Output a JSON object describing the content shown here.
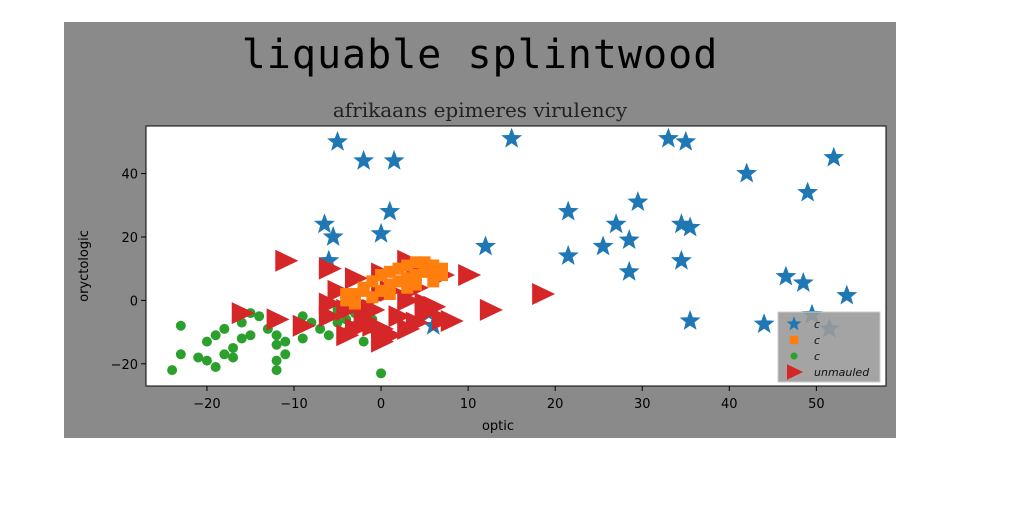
{
  "chart_data": {
    "type": "scatter",
    "title": "liquable splintwood",
    "subtitle": "afrikaans epimeres virulency",
    "xlabel": "optic",
    "ylabel": "oryctologic",
    "xlim": [
      -27,
      58
    ],
    "ylim": [
      -27,
      55
    ],
    "xticks": [
      -20,
      -10,
      0,
      10,
      20,
      30,
      40,
      50
    ],
    "yticks": [
      -20,
      0,
      20,
      40
    ],
    "grid": false,
    "legend_position": "bottom-right",
    "series": [
      {
        "name": "c",
        "marker": "star",
        "color": "#1f77b4",
        "points": [
          [
            -5,
            50
          ],
          [
            -2,
            44
          ],
          [
            1.5,
            44
          ],
          [
            15,
            51
          ],
          [
            33,
            51
          ],
          [
            35,
            50
          ],
          [
            52,
            45
          ],
          [
            42,
            40
          ],
          [
            49,
            34
          ],
          [
            1,
            28
          ],
          [
            29.5,
            31
          ],
          [
            21.5,
            28
          ],
          [
            27,
            24
          ],
          [
            -6.5,
            24
          ],
          [
            -5.5,
            20
          ],
          [
            0,
            21
          ],
          [
            12,
            17
          ],
          [
            28.5,
            19
          ],
          [
            34.5,
            24
          ],
          [
            35.5,
            23
          ],
          [
            21.5,
            14
          ],
          [
            25.5,
            17
          ],
          [
            34.5,
            12.5
          ],
          [
            28.5,
            9
          ],
          [
            -6,
            12.5
          ],
          [
            46.5,
            7.5
          ],
          [
            48.5,
            5.5
          ],
          [
            53.5,
            1.5
          ],
          [
            5.5,
            -4
          ],
          [
            6,
            -8
          ],
          [
            35.5,
            -6.5
          ],
          [
            44,
            -7.5
          ],
          [
            49.5,
            -4.5
          ],
          [
            51.5,
            -9
          ]
        ]
      },
      {
        "name": "c",
        "marker": "square",
        "color": "#ff7f0e",
        "points": [
          [
            -4,
            0
          ],
          [
            -3,
            2
          ],
          [
            -2,
            4
          ],
          [
            -1,
            6
          ],
          [
            0,
            8
          ],
          [
            1,
            9
          ],
          [
            2,
            10
          ],
          [
            3,
            11
          ],
          [
            4,
            12
          ],
          [
            5,
            12
          ],
          [
            6,
            11
          ],
          [
            7,
            10
          ],
          [
            -3,
            -1
          ],
          [
            -1,
            1
          ],
          [
            0,
            3
          ],
          [
            1,
            5
          ],
          [
            2,
            6
          ],
          [
            3,
            7
          ],
          [
            4,
            8
          ],
          [
            5,
            9
          ],
          [
            6,
            9
          ],
          [
            7,
            8
          ],
          [
            -2,
            3
          ],
          [
            3,
            4
          ],
          [
            -4,
            2
          ],
          [
            1,
            2
          ],
          [
            4,
            5
          ],
          [
            6,
            6
          ]
        ]
      },
      {
        "name": "c",
        "marker": "circle",
        "color": "#2ca02c",
        "points": [
          [
            -23,
            -8
          ],
          [
            -23,
            -17
          ],
          [
            -24,
            -22
          ],
          [
            -21,
            -18
          ],
          [
            -20,
            -19
          ],
          [
            -19,
            -21
          ],
          [
            -18,
            -17
          ],
          [
            -17,
            -18
          ],
          [
            -17,
            -15
          ],
          [
            -20,
            -13
          ],
          [
            -19,
            -11
          ],
          [
            -18,
            -9
          ],
          [
            -16,
            -12
          ],
          [
            -15,
            -11
          ],
          [
            -16,
            -7
          ],
          [
            -14,
            -5
          ],
          [
            -13,
            -9
          ],
          [
            -12,
            -11
          ],
          [
            -12,
            -14
          ],
          [
            -11,
            -13
          ],
          [
            -12,
            -19
          ],
          [
            -12,
            -22
          ],
          [
            -11,
            -17
          ],
          [
            -9,
            -12
          ],
          [
            -9,
            -5
          ],
          [
            -8,
            -7
          ],
          [
            -7,
            -9
          ],
          [
            -6,
            -11
          ],
          [
            -6,
            -5
          ],
          [
            -5,
            -7
          ],
          [
            -5,
            -3
          ],
          [
            -4,
            -6
          ],
          [
            -4,
            -10
          ],
          [
            -3,
            -8
          ],
          [
            -3,
            -4
          ],
          [
            -2,
            -13
          ],
          [
            -1,
            -6
          ],
          [
            -1,
            -9
          ],
          [
            0,
            -23
          ],
          [
            -15,
            -4
          ]
        ]
      },
      {
        "name": "unmauled",
        "marker": "triangle-right",
        "color": "#d62728",
        "points": [
          [
            -11,
            12.5
          ],
          [
            -6,
            10
          ],
          [
            -3,
            7
          ],
          [
            0,
            8.5
          ],
          [
            3,
            12.5
          ],
          [
            4,
            9
          ],
          [
            7,
            8
          ],
          [
            10,
            8
          ],
          [
            12.5,
            -3
          ],
          [
            18.5,
            2
          ],
          [
            -16,
            -4
          ],
          [
            -12,
            -6
          ],
          [
            -9,
            -8
          ],
          [
            -6,
            -5
          ],
          [
            -6,
            -1
          ],
          [
            -4,
            -3
          ],
          [
            -2,
            -6
          ],
          [
            -1,
            -8
          ],
          [
            0,
            -9
          ],
          [
            0,
            -13
          ],
          [
            1,
            -11
          ],
          [
            2,
            -5
          ],
          [
            3,
            -9
          ],
          [
            4,
            -7
          ],
          [
            5,
            -4
          ],
          [
            6,
            -2
          ],
          [
            7,
            -6
          ],
          [
            8,
            -6.5
          ],
          [
            -4,
            -11
          ],
          [
            -3,
            -9
          ],
          [
            -2,
            -2
          ],
          [
            0,
            2
          ],
          [
            3,
            0
          ],
          [
            -1,
            -3
          ],
          [
            5,
            -1
          ],
          [
            1,
            3
          ],
          [
            -5,
            3
          ],
          [
            4,
            4
          ]
        ]
      }
    ]
  }
}
